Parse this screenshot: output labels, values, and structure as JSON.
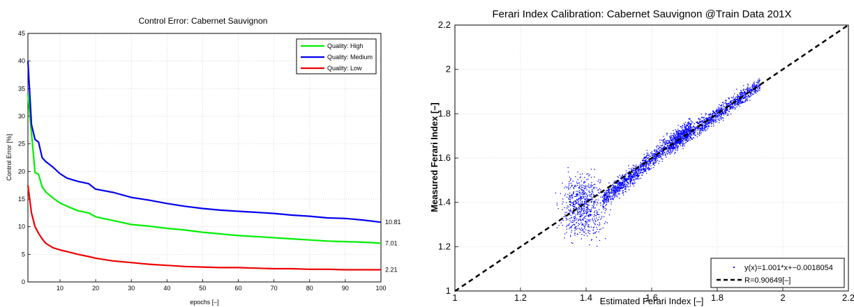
{
  "chart_data": [
    {
      "type": "line",
      "title": "Control Error: Cabernet Sauvignon",
      "xlabel": "epochs [–]",
      "ylabel": "Control Error [%]",
      "xlim": [
        1,
        100
      ],
      "ylim": [
        0,
        45
      ],
      "xticks": [
        10,
        20,
        30,
        40,
        50,
        60,
        70,
        80,
        90,
        100
      ],
      "yticks": [
        0,
        5,
        10,
        15,
        20,
        25,
        30,
        35,
        40,
        45
      ],
      "grid": true,
      "legend": "top-right",
      "series": [
        {
          "name": "Quality: High",
          "color": "#00ee00",
          "x": [
            1,
            2,
            3,
            4,
            5,
            6,
            8,
            10,
            12,
            15,
            18,
            20,
            25,
            30,
            35,
            40,
            45,
            50,
            55,
            60,
            65,
            70,
            75,
            80,
            85,
            90,
            95,
            100
          ],
          "values": [
            34,
            27,
            19.8,
            19.5,
            17.2,
            16.3,
            15.2,
            14.3,
            13.7,
            12.9,
            12.5,
            11.8,
            11.1,
            10.4,
            10.1,
            9.7,
            9.4,
            9.0,
            8.7,
            8.4,
            8.2,
            8.0,
            7.8,
            7.6,
            7.4,
            7.3,
            7.2,
            7.01
          ]
        },
        {
          "name": "Quality: Medium",
          "color": "#0000ee",
          "x": [
            1,
            2,
            3,
            4,
            5,
            6,
            8,
            10,
            12,
            15,
            18,
            20,
            25,
            30,
            35,
            40,
            45,
            50,
            55,
            60,
            65,
            70,
            75,
            80,
            85,
            90,
            95,
            100
          ],
          "values": [
            40,
            28.5,
            25.8,
            25.3,
            22.5,
            21.8,
            20.8,
            19.6,
            18.8,
            18.2,
            17.8,
            16.8,
            16.2,
            15.3,
            14.8,
            14.2,
            13.7,
            13.3,
            13.0,
            12.8,
            12.6,
            12.4,
            12.1,
            11.9,
            11.6,
            11.5,
            11.2,
            10.81
          ]
        },
        {
          "name": "Quality: Low",
          "color": "#ee0000",
          "x": [
            1,
            2,
            3,
            4,
            5,
            6,
            8,
            10,
            12,
            15,
            18,
            20,
            25,
            30,
            35,
            40,
            45,
            50,
            55,
            60,
            65,
            70,
            75,
            80,
            85,
            90,
            95,
            100
          ],
          "values": [
            17.5,
            12.5,
            10,
            8.8,
            7.8,
            7.0,
            6.2,
            5.8,
            5.5,
            5.0,
            4.6,
            4.3,
            3.8,
            3.5,
            3.2,
            3.0,
            2.8,
            2.7,
            2.6,
            2.6,
            2.5,
            2.4,
            2.4,
            2.3,
            2.3,
            2.2,
            2.2,
            2.21
          ]
        }
      ],
      "end_labels": [
        "10.81",
        "7.01",
        "2.21"
      ]
    },
    {
      "type": "scatter",
      "title": "Ferari Index Calibration: Cabernet Sauvignon @Train Data 201X",
      "xlabel": "Estimated Ferari Index [–]",
      "ylabel": "Measured Ferari Index [–]",
      "xlim": [
        1,
        2.2
      ],
      "ylim": [
        1,
        2.2
      ],
      "xticks": [
        1,
        1.2,
        1.4,
        1.6,
        1.8,
        2,
        2.2
      ],
      "yticks": [
        1,
        1.2,
        1.4,
        1.6,
        1.8,
        2,
        2.2
      ],
      "xtick_labels": [
        "1",
        "1.2",
        "1.4",
        "1.6",
        "1.8",
        "2",
        "2.2"
      ],
      "ytick_labels": [
        "1",
        "1.2",
        "1.4",
        "1.6",
        "1.8",
        "2",
        "2.2"
      ],
      "grid": true,
      "legend": "bottom-right",
      "scatter_color": "#0000ff",
      "fit_line": {
        "slope": 1.001,
        "intercept": -0.0018054,
        "color": "#000000"
      },
      "legend_entries": [
        "y(x)=1.001*x+−0.0018054",
        "R=0.90649[–]"
      ],
      "clusters": [
        {
          "x_range": [
            1.28,
            1.5
          ],
          "y_range": [
            1.14,
            1.62
          ]
        },
        {
          "x_range": [
            1.45,
            1.72
          ],
          "y_range": [
            1.38,
            1.78
          ]
        },
        {
          "x_range": [
            1.65,
            1.93
          ],
          "y_range": [
            1.62,
            1.96
          ]
        }
      ]
    }
  ]
}
